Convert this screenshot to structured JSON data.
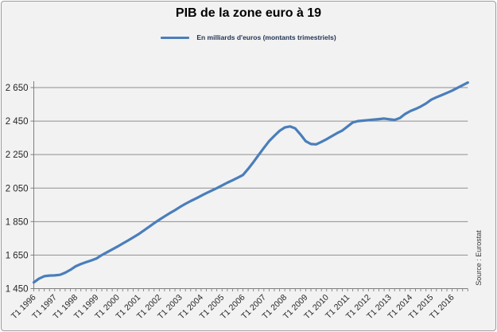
{
  "header": {
    "title": "PIB de la zone euro à 19"
  },
  "legend": {
    "series_label": "En milliards d'euros (montants trimestriels)"
  },
  "source_note": "Source : Eurostat",
  "colors": {
    "series_line": "#4A7EBB",
    "grid": "#8F8F8F",
    "axis": "#7F7F7F",
    "tick_label_text": "#262626",
    "legend_text": "#1F3252",
    "background": "#F2F2F2",
    "frame_border": "#9C9C9C"
  },
  "chart_data": {
    "type": "line",
    "title": "PIB de la zone euro à 19",
    "unit": "milliards d'euros (montants trimestriels)",
    "source": "Source : Eurostat",
    "grid": "horizontal",
    "legend_position": "top",
    "ylim": [
      1450,
      2700
    ],
    "y_ticks": [
      1450,
      1650,
      1850,
      2050,
      2250,
      2450,
      2650
    ],
    "y_tick_labels": [
      "1 450",
      "1 650",
      "1 850",
      "2 050",
      "2 250",
      "2 450",
      "2 650"
    ],
    "x_tick_labels": [
      "T1 1996",
      "T1 1997",
      "T1 1998",
      "T1 1999",
      "T1 2000",
      "T1 2001",
      "T1 2002",
      "T1 2003",
      "T1 2004",
      "T1 2005",
      "T1 2006",
      "T1 2007",
      "T1 2008",
      "T1 2009",
      "T1 2010",
      "T1 2011",
      "T1 2012",
      "T1 2013",
      "T1 2014",
      "T1 2015",
      "T1 2016"
    ],
    "x_label_every_n_quarters": 4,
    "categories": [
      "T1 1996",
      "T2 1996",
      "T3 1996",
      "T4 1996",
      "T1 1997",
      "T2 1997",
      "T3 1997",
      "T4 1997",
      "T1 1998",
      "T2 1998",
      "T3 1998",
      "T4 1998",
      "T1 1999",
      "T2 1999",
      "T3 1999",
      "T4 1999",
      "T1 2000",
      "T2 2000",
      "T3 2000",
      "T4 2000",
      "T1 2001",
      "T2 2001",
      "T3 2001",
      "T4 2001",
      "T1 2002",
      "T2 2002",
      "T3 2002",
      "T4 2002",
      "T1 2003",
      "T2 2003",
      "T3 2003",
      "T4 2003",
      "T1 2004",
      "T2 2004",
      "T3 2004",
      "T4 2004",
      "T1 2005",
      "T2 2005",
      "T3 2005",
      "T4 2005",
      "T1 2006",
      "T2 2006",
      "T3 2006",
      "T4 2006",
      "T1 2007",
      "T2 2007",
      "T3 2007",
      "T4 2007",
      "T1 2008",
      "T2 2008",
      "T3 2008",
      "T4 2008",
      "T1 2009",
      "T2 2009",
      "T3 2009",
      "T4 2009",
      "T1 2010",
      "T2 2010",
      "T3 2010",
      "T4 2010",
      "T1 2011",
      "T2 2011",
      "T3 2011",
      "T4 2011",
      "T1 2012",
      "T2 2012",
      "T3 2012",
      "T4 2012",
      "T1 2013",
      "T2 2013",
      "T3 2013",
      "T4 2013",
      "T1 2014",
      "T2 2014",
      "T3 2014",
      "T4 2014",
      "T1 2015",
      "T2 2015",
      "T3 2015",
      "T4 2015",
      "T1 2016",
      "T2 2016",
      "T3 2016",
      "T4 2016"
    ],
    "series": [
      {
        "name": "En milliards d'euros (montants trimestriels)",
        "color": "#4A7EBB",
        "values": [
          1487,
          1510,
          1524,
          1528,
          1529,
          1532,
          1545,
          1562,
          1583,
          1597,
          1608,
          1618,
          1630,
          1650,
          1667,
          1684,
          1701,
          1719,
          1737,
          1755,
          1774,
          1796,
          1818,
          1840,
          1861,
          1881,
          1900,
          1918,
          1938,
          1956,
          1973,
          1988,
          2004,
          2020,
          2035,
          2050,
          2066,
          2082,
          2097,
          2112,
          2128,
          2165,
          2205,
          2248,
          2290,
          2330,
          2362,
          2392,
          2412,
          2418,
          2406,
          2370,
          2330,
          2313,
          2311,
          2326,
          2342,
          2360,
          2378,
          2394,
          2418,
          2442,
          2450,
          2453,
          2456,
          2459,
          2462,
          2465,
          2461,
          2457,
          2468,
          2492,
          2510,
          2522,
          2537,
          2555,
          2578,
          2592,
          2605,
          2618,
          2632,
          2648,
          2664,
          2680
        ]
      }
    ]
  }
}
